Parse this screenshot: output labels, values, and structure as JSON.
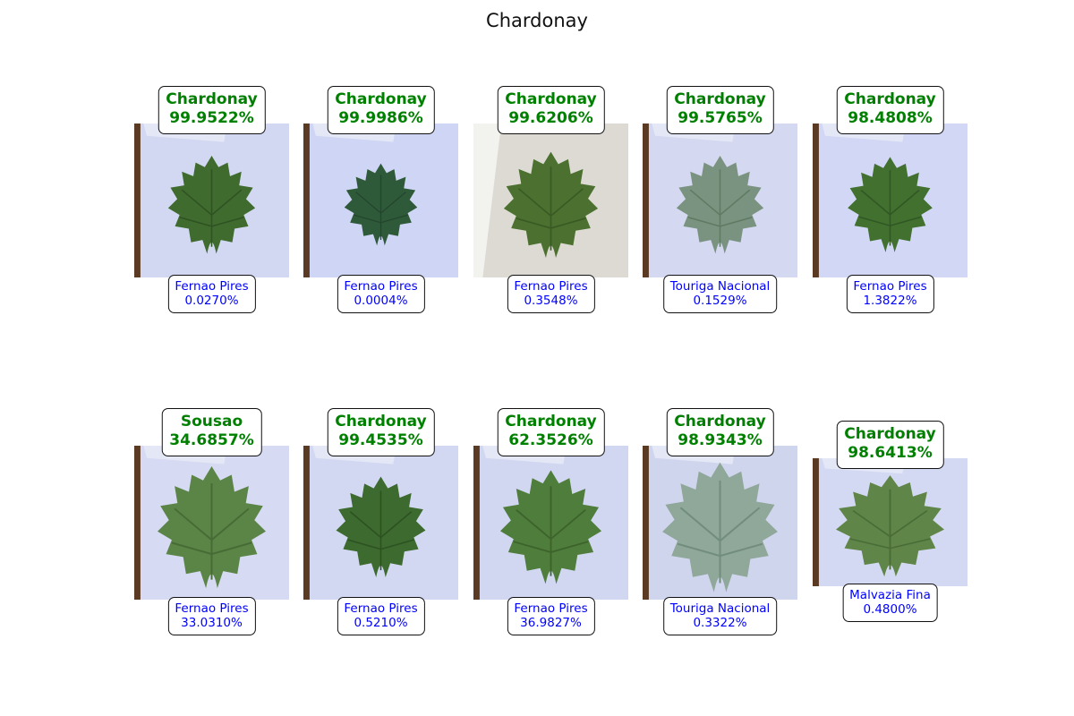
{
  "figure": {
    "title": "Chardonay",
    "colors": {
      "top_prediction": "#008000",
      "second_prediction": "#0000ff",
      "paper_background": "#d5d9f4",
      "table_edge": "#5a3a22"
    }
  },
  "rows": [
    [
      {
        "top_label": "Chardonay",
        "top_pct": "99.9522%",
        "second_label": "Fernao Pires",
        "second_pct": "0.0270%"
      },
      {
        "top_label": "Chardonay",
        "top_pct": "99.9986%",
        "second_label": "Fernao Pires",
        "second_pct": "0.0004%"
      },
      {
        "top_label": "Chardonay",
        "top_pct": "99.6206%",
        "second_label": "Fernao Pires",
        "second_pct": "0.3548%"
      },
      {
        "top_label": "Chardonay",
        "top_pct": "99.5765%",
        "second_label": "Touriga Nacional",
        "second_pct": "0.1529%"
      },
      {
        "top_label": "Chardonay",
        "top_pct": "98.4808%",
        "second_label": "Fernao Pires",
        "second_pct": "1.3822%"
      }
    ],
    [
      {
        "top_label": "Sousao",
        "top_pct": "34.6857%",
        "second_label": "Fernao Pires",
        "second_pct": "33.0310%"
      },
      {
        "top_label": "Chardonay",
        "top_pct": "99.4535%",
        "second_label": "Fernao Pires",
        "second_pct": "0.5210%"
      },
      {
        "top_label": "Chardonay",
        "top_pct": "62.3526%",
        "second_label": "Fernao Pires",
        "second_pct": "36.9827%"
      },
      {
        "top_label": "Chardonay",
        "top_pct": "98.9343%",
        "second_label": "Touriga Nacional",
        "second_pct": "0.3322%"
      },
      {
        "top_label": "Chardonay",
        "top_pct": "98.6413%",
        "second_label": "Malvazia Fina",
        "second_pct": "0.4800%"
      }
    ]
  ]
}
